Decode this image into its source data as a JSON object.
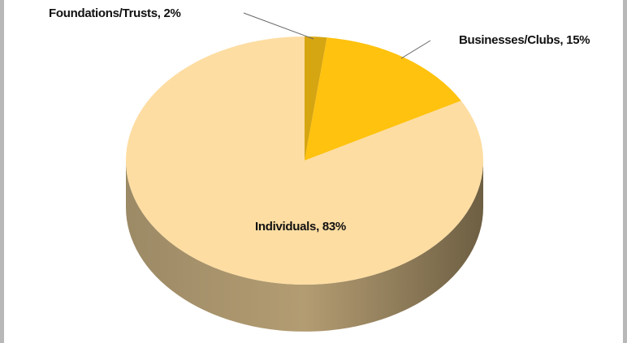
{
  "chart_data": {
    "type": "pie",
    "labels": [
      "Foundations/Trusts, 2%",
      "Businesses/Clubs, 15%",
      "Individuals, 83%"
    ],
    "values": [
      2,
      15,
      83
    ],
    "colors": [
      "#d6a512",
      "#ffc20e",
      "#fddda2"
    ]
  }
}
